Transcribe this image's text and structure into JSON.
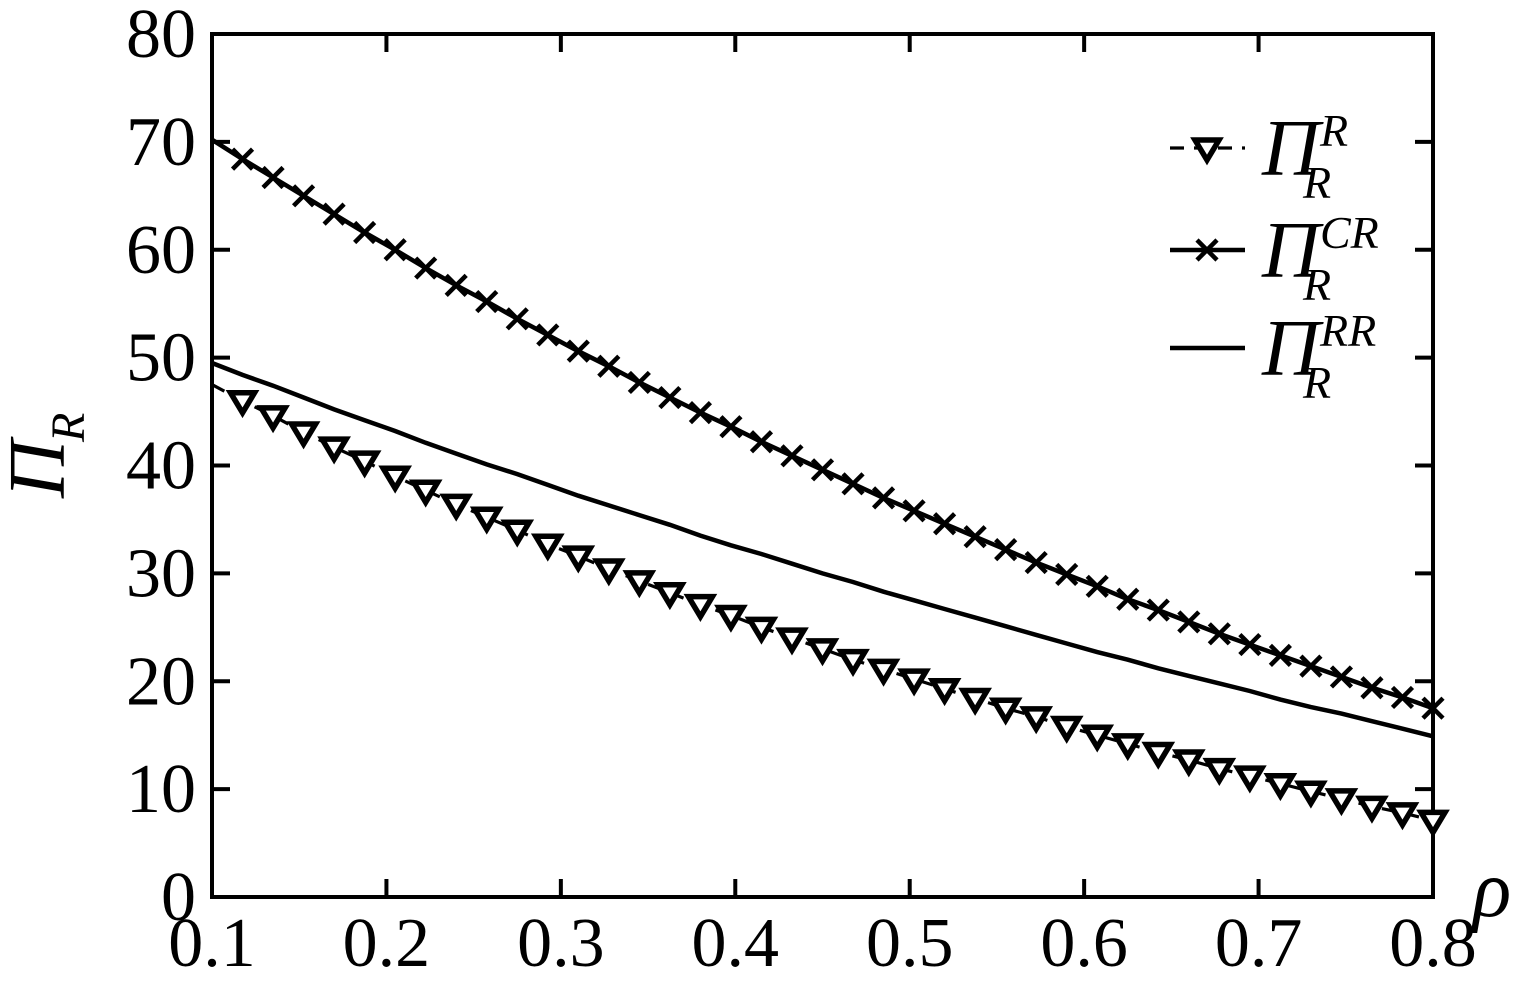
{
  "canvas": {
    "background": "#ffffff",
    "foreground": "#000000"
  },
  "chart_data": {
    "type": "line",
    "title": "",
    "xlabel": "ρ",
    "ylabel": {
      "main": "Π",
      "sub": "R"
    },
    "xlim": [
      0.1,
      0.8
    ],
    "ylim": [
      0,
      80
    ],
    "xtick_values": [
      0.1,
      0.2,
      0.3,
      0.4,
      0.5,
      0.6,
      0.7,
      0.8
    ],
    "xtick_labels": [
      "0.1",
      "0.2",
      "0.3",
      "0.4",
      "0.5",
      "0.6",
      "0.7",
      "0.8"
    ],
    "ytick_values": [
      0,
      10,
      20,
      30,
      40,
      50,
      60,
      70,
      80
    ],
    "ytick_labels": [
      "0",
      "10",
      "20",
      "30",
      "40",
      "50",
      "60",
      "70",
      "80"
    ],
    "grid": false,
    "legend": {
      "position": "top-right-inside",
      "frame": false
    },
    "x": [
      0.1,
      0.1175,
      0.135,
      0.1525,
      0.17,
      0.1875,
      0.205,
      0.2225,
      0.24,
      0.2575,
      0.275,
      0.2925,
      0.31,
      0.3275,
      0.345,
      0.3625,
      0.38,
      0.3975,
      0.415,
      0.4325,
      0.45,
      0.4675,
      0.485,
      0.5025,
      0.52,
      0.5375,
      0.555,
      0.5725,
      0.59,
      0.6075,
      0.625,
      0.6425,
      0.66,
      0.6775,
      0.695,
      0.7125,
      0.73,
      0.7475,
      0.765,
      0.7825,
      0.8
    ],
    "series": [
      {
        "name": "Pi_R_R",
        "label": {
          "main": "Π",
          "sup": "R",
          "sub": "R"
        },
        "line_style": "dashed",
        "marker": "triangle-down-open",
        "color": "#000000",
        "values": [
          47.5,
          46.0,
          44.6,
          43.1,
          41.7,
          40.4,
          39.0,
          37.7,
          36.4,
          35.2,
          34.0,
          32.7,
          31.6,
          30.4,
          29.3,
          28.2,
          27.1,
          26.1,
          25.0,
          24.0,
          23.0,
          22.0,
          21.1,
          20.2,
          19.3,
          18.4,
          17.5,
          16.7,
          15.8,
          15.0,
          14.2,
          13.4,
          12.7,
          11.9,
          11.2,
          10.5,
          9.8,
          9.1,
          8.4,
          7.8,
          7.1
        ]
      },
      {
        "name": "Pi_R_CR",
        "label": {
          "main": "Π",
          "sup": "CR",
          "sub": "R"
        },
        "line_style": "solid",
        "marker": "x",
        "color": "#000000",
        "values": [
          70.2,
          68.4,
          66.7,
          65.0,
          63.3,
          61.6,
          60.0,
          58.3,
          56.7,
          55.2,
          53.6,
          52.1,
          50.6,
          49.2,
          47.7,
          46.3,
          44.9,
          43.6,
          42.2,
          40.9,
          39.6,
          38.3,
          37.0,
          35.8,
          34.6,
          33.4,
          32.2,
          31.0,
          29.9,
          28.8,
          27.6,
          26.6,
          25.5,
          24.4,
          23.4,
          22.4,
          21.4,
          20.4,
          19.4,
          18.5,
          17.5
        ]
      },
      {
        "name": "Pi_R_RR",
        "label": {
          "main": "Π",
          "sup": "RR",
          "sub": "R"
        },
        "line_style": "solid",
        "marker": "none",
        "color": "#000000",
        "values": [
          49.5,
          48.4,
          47.4,
          46.3,
          45.2,
          44.2,
          43.2,
          42.1,
          41.1,
          40.1,
          39.2,
          38.2,
          37.2,
          36.3,
          35.4,
          34.5,
          33.5,
          32.6,
          31.8,
          30.9,
          30.0,
          29.2,
          28.3,
          27.5,
          26.7,
          25.9,
          25.1,
          24.3,
          23.5,
          22.7,
          22.0,
          21.2,
          20.5,
          19.8,
          19.1,
          18.3,
          17.6,
          17.0,
          16.3,
          15.6,
          14.9
        ]
      }
    ]
  }
}
